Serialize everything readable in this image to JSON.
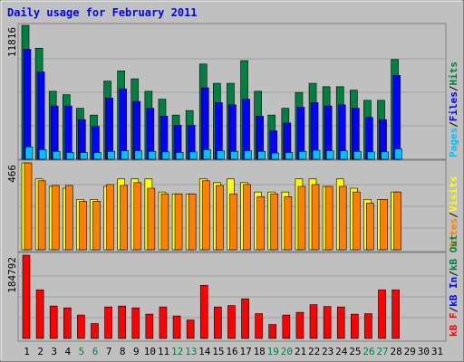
{
  "chart_data": {
    "type": "bar",
    "title": "Daily usage for February 2011",
    "days": [
      "1",
      "2",
      "3",
      "4",
      "5",
      "6",
      "7",
      "8",
      "9",
      "10",
      "11",
      "12",
      "13",
      "14",
      "15",
      "16",
      "17",
      "18",
      "19",
      "20",
      "21",
      "22",
      "23",
      "24",
      "25",
      "26",
      "27",
      "28",
      "29",
      "30",
      "31"
    ],
    "weekend_days": [
      "5",
      "6",
      "12",
      "13",
      "19",
      "20",
      "26",
      "27"
    ],
    "colors": {
      "title": "#0000ff",
      "hits": "#008040",
      "files": "#0000ff",
      "pages": "#00c0ff",
      "visits": "#ffff00",
      "sites": "#ff8000",
      "kb_in": "#0000ff",
      "kb_out": "#008040",
      "kb_f": "#ff0000",
      "weekend_label": "#008040",
      "weekday_label": "#000000"
    },
    "panels": [
      {
        "id": "hits-files-pages",
        "ymax_label": "11816",
        "ymax": 11816,
        "legend": [
          {
            "label": "Pages",
            "color": "#00c0ff"
          },
          {
            "label": "/",
            "color": "#000000"
          },
          {
            "label": "Files",
            "color": "#0000ff"
          },
          {
            "label": "/",
            "color": "#000000"
          },
          {
            "label": "Hits",
            "color": "#008040"
          }
        ],
        "series": [
          {
            "name": "Hits",
            "color": "#008040",
            "values": [
              11816,
              9800,
              6000,
              5700,
              4500,
              3900,
              6900,
              7800,
              7100,
              6000,
              5300,
              3900,
              4300,
              8400,
              6700,
              6700,
              8700,
              6000,
              3900,
              4500,
              5900,
              6700,
              6400,
              6400,
              6100,
              5200,
              5200,
              8800,
              0,
              0,
              0
            ]
          },
          {
            "name": "Files",
            "color": "#0000ff",
            "values": [
              9700,
              7700,
              4700,
              4700,
              3500,
              2900,
              5400,
              6200,
              5100,
              4500,
              3800,
              3000,
              3000,
              6300,
              5000,
              4800,
              5300,
              3800,
              2500,
              3200,
              4600,
              5000,
              4700,
              4800,
              4500,
              3700,
              3500,
              7400,
              0,
              0,
              0
            ]
          },
          {
            "name": "Pages",
            "color": "#00c0ff",
            "values": [
              1100,
              850,
              700,
              600,
              600,
              600,
              700,
              750,
              750,
              700,
              650,
              600,
              650,
              850,
              750,
              700,
              750,
              700,
              550,
              600,
              700,
              800,
              750,
              750,
              700,
              650,
              650,
              900,
              0,
              0,
              0
            ]
          }
        ]
      },
      {
        "id": "visits-sites",
        "ymax_label": "466",
        "ymax": 466,
        "legend": [
          {
            "label": "Sites",
            "color": "#ff8000"
          },
          {
            "label": "/",
            "color": "#000000"
          },
          {
            "label": "Visits",
            "color": "#ffff00"
          }
        ],
        "series": [
          {
            "name": "Visits",
            "color": "#ffff00",
            "values": [
              466,
              380,
              340,
              330,
              270,
              270,
              340,
              380,
              380,
              380,
              310,
              300,
              300,
              380,
              360,
              380,
              360,
              310,
              310,
              310,
              380,
              380,
              340,
              380,
              330,
              270,
              270,
              310,
              0,
              0,
              0
            ]
          },
          {
            "name": "Sites",
            "color": "#ff8000",
            "values": [
              466,
              370,
              345,
              345,
              260,
              260,
              350,
              345,
              360,
              330,
              300,
              300,
              300,
              370,
              345,
              300,
              350,
              285,
              300,
              285,
              340,
              350,
              340,
              340,
              310,
              250,
              270,
              310,
              0,
              0,
              0
            ]
          }
        ]
      },
      {
        "id": "kbf-kbin-kbout",
        "ymax_label": "184792",
        "ymax": 184792,
        "legend": [
          {
            "label": "kB F",
            "color": "#ff0000"
          },
          {
            "label": "/",
            "color": "#000000"
          },
          {
            "label": "kB In",
            "color": "#0000ff"
          },
          {
            "label": "/",
            "color": "#000000"
          },
          {
            "label": "kB Out",
            "color": "#008040"
          }
        ],
        "series": [
          {
            "name": "kB F",
            "color": "#ff0000",
            "values": [
              184792,
              108000,
              72000,
              68000,
              52000,
              33000,
              70000,
              72000,
              68000,
              54000,
              70000,
              50000,
              41000,
              118000,
              70000,
              73000,
              88000,
              55000,
              31000,
              52000,
              58000,
              75000,
              71000,
              70000,
              54000,
              55000,
              108000,
              108000,
              0,
              0,
              0
            ]
          }
        ]
      }
    ]
  }
}
